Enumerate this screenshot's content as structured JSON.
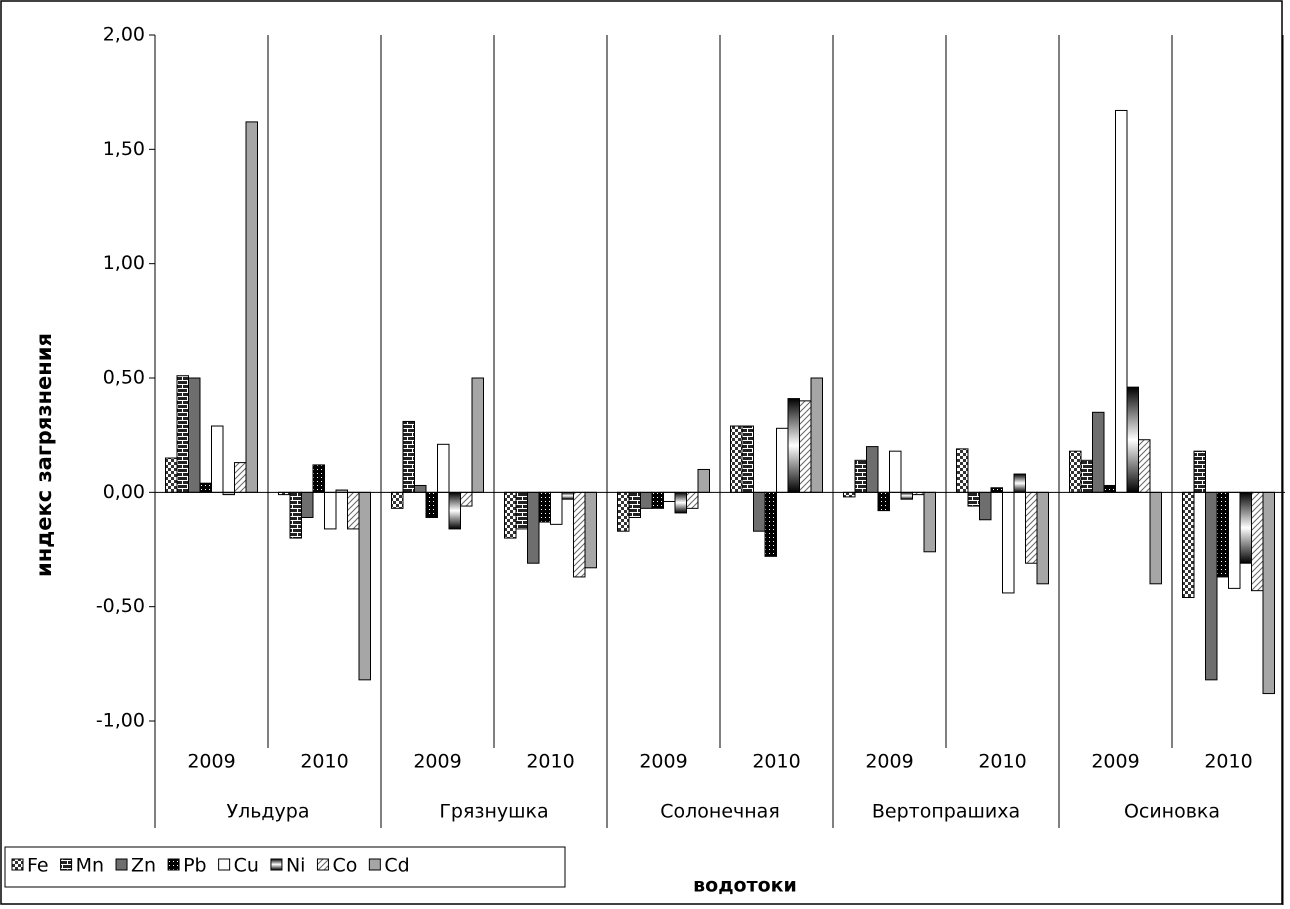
{
  "chart_data": {
    "type": "bar",
    "y_label": "индекс загрязнения",
    "x_label": "водотоки",
    "categories": [
      "2009",
      "2010",
      "2009",
      "2010",
      "2009",
      "2010",
      "2009",
      "2010",
      "2009",
      "2010"
    ],
    "groups": [
      "Ульдура",
      "Грязнушка",
      "Солонечная",
      "Вертопрашиха",
      "Осиновка"
    ],
    "ylim": [
      -1,
      2
    ],
    "yticks": [
      {
        "value": -1,
        "label": "-1,00"
      },
      {
        "value": -0.5,
        "label": "-0,50"
      },
      {
        "value": 0,
        "label": "0,00"
      },
      {
        "value": 0.5,
        "label": "0,50"
      },
      {
        "value": 1,
        "label": "1,00"
      },
      {
        "value": 1.5,
        "label": "1,50"
      },
      {
        "value": 2,
        "label": "2,00"
      }
    ],
    "legend": "bottom-left",
    "series": [
      {
        "name": "Fe",
        "color": "#555555",
        "pattern": "checker",
        "values": [
          0.15,
          -0.01,
          -0.07,
          -0.2,
          -0.17,
          0.29,
          -0.02,
          0.19,
          0.18,
          -0.46
        ]
      },
      {
        "name": "Mn",
        "color": "#333333",
        "pattern": "brick",
        "values": [
          0.51,
          -0.2,
          0.31,
          -0.16,
          -0.11,
          0.29,
          0.14,
          -0.06,
          0.14,
          0.18
        ]
      },
      {
        "name": "Zn",
        "color": "#6e6e6e",
        "pattern": "solid",
        "values": [
          0.5,
          -0.11,
          0.03,
          -0.31,
          -0.07,
          -0.17,
          0.2,
          -0.12,
          0.35,
          -0.82
        ]
      },
      {
        "name": "Pb",
        "color": "#000000",
        "pattern": "dots",
        "values": [
          0.04,
          0.12,
          -0.11,
          -0.13,
          -0.07,
          -0.28,
          -0.08,
          0.02,
          0.03,
          -0.37
        ]
      },
      {
        "name": "Cu",
        "color": "#ffffff",
        "pattern": "solid",
        "values": [
          0.29,
          -0.16,
          0.21,
          -0.14,
          -0.04,
          0.28,
          0.18,
          -0.44,
          1.67,
          -0.42
        ]
      },
      {
        "name": "Ni",
        "color": "#000000",
        "pattern": "gradient",
        "values": [
          -0.01,
          0.01,
          -0.16,
          -0.03,
          -0.09,
          0.41,
          -0.03,
          0.08,
          0.46,
          -0.31
        ]
      },
      {
        "name": "Co",
        "color": "#888888",
        "pattern": "hatch",
        "values": [
          0.13,
          -0.16,
          -0.06,
          -0.37,
          -0.07,
          0.4,
          -0.01,
          -0.31,
          0.23,
          -0.43
        ]
      },
      {
        "name": "Cd",
        "color": "#a6a6a6",
        "pattern": "solid",
        "values": [
          1.62,
          -0.82,
          0.5,
          -0.33,
          0.1,
          0.5,
          -0.26,
          -0.4,
          -0.4,
          -0.88
        ]
      }
    ]
  }
}
